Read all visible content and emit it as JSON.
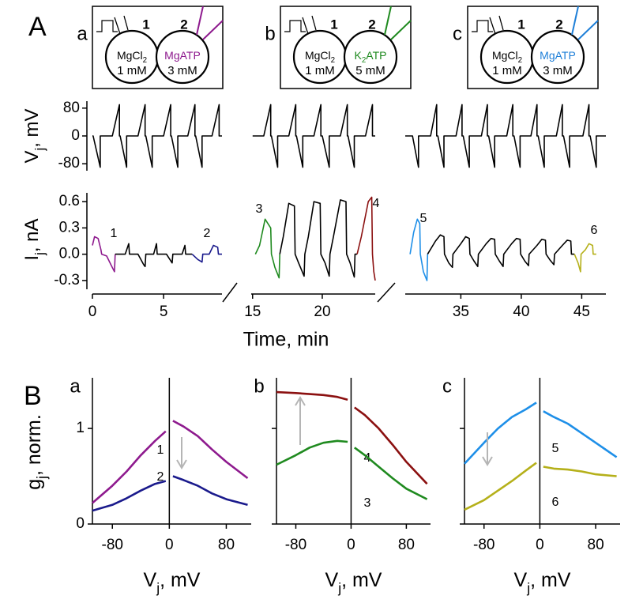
{
  "panel_labels": [
    "A",
    "B"
  ],
  "insets": [
    {
      "letter": "a",
      "cell1": "1",
      "cell2": "2",
      "left_solution": {
        "main": "MgCl",
        "sub": "2"
      },
      "left_conc": "1 mM",
      "right_solution": {
        "main": "MgATP"
      },
      "right_conc": "3 mM",
      "color": "#8e1a8e"
    },
    {
      "letter": "b",
      "cell1": "1",
      "cell2": "2",
      "left_solution": {
        "main": "MgCl",
        "sub": "2"
      },
      "left_conc": "1 mM",
      "right_solution": {
        "main": "K",
        "sub": "2",
        "rest": "ATP"
      },
      "right_conc": "5 mM",
      "color": "#1f8a1f"
    },
    {
      "letter": "c",
      "cell1": "1",
      "cell2": "2",
      "left_solution": {
        "main": "MgCl",
        "sub": "2"
      },
      "left_conc": "1 mM",
      "right_solution": {
        "main": "MgATP"
      },
      "right_conc": "3 mM",
      "color": "#1e7fd8"
    }
  ],
  "chart_data": [
    {
      "type": "line",
      "xlabel": "Time, min",
      "vj_label": {
        "main": "V",
        "sub": "j",
        "rest": ", mV"
      },
      "vj_ylim": [
        -100,
        100
      ],
      "vj_yticks": [
        80,
        0,
        -80
      ],
      "ij_label": {
        "main": "I",
        "sub": "j",
        "rest": ", nA"
      },
      "ij_ylim": [
        -0.4,
        0.7
      ],
      "ij_yticks": [
        0.6,
        0.3,
        {
          "value": 0,
          "label": "0.0"
        },
        -0.3
      ],
      "segments": [
        {
          "xlim": [
            0,
            9.1
          ],
          "xticks": [
            0,
            5
          ],
          "vj": {
            "color": "#000000",
            "x": [
              0,
              0.05,
              0.55,
              0.55,
              1.4,
              1.9,
              1.9,
              1.95,
              2.4,
              2.4,
              3.2,
              3.7,
              3.7,
              3.75,
              4.2,
              4.2,
              5.0,
              5.5,
              5.5,
              5.55,
              6.0,
              6.0,
              6.7,
              7.2,
              7.2,
              7.25,
              7.7,
              7.7,
              8.4,
              8.9,
              8.9,
              9.1
            ],
            "values": [
              0,
              0,
              -90,
              0,
              0,
              90,
              0,
              0,
              -90,
              0,
              0,
              90,
              0,
              0,
              -90,
              0,
              0,
              90,
              0,
              0,
              -90,
              0,
              0,
              90,
              0,
              0,
              -90,
              0,
              0,
              90,
              0,
              0
            ]
          },
          "ij": [
            {
              "name": "1",
              "color": "#8e1a8e",
              "x": [
                0,
                0.15,
                0.4,
                0.6,
                0.65,
                1.0,
                1.3,
                1.55,
                1.6
              ],
              "values": [
                0.1,
                0.2,
                0.18,
                0.05,
                0,
                -0.02,
                -0.12,
                -0.2,
                0
              ]
            },
            {
              "color": "#000000",
              "x": [
                1.6,
                2.3,
                2.55,
                2.6,
                3.2,
                3.6,
                3.7,
                3.75,
                4.3,
                4.5,
                4.55,
                5.2,
                5.6,
                5.65,
                6.3,
                6.5,
                6.55,
                7.0
              ],
              "values": [
                0,
                0,
                0.12,
                0,
                0,
                -0.12,
                -0.14,
                0,
                0,
                0.12,
                0,
                0,
                -0.1,
                0,
                0,
                0.1,
                0,
                0
              ]
            },
            {
              "name": "2",
              "color": "#1a1a8c",
              "x": [
                7.0,
                7.4,
                7.7,
                7.75,
                8.2,
                8.5,
                8.8,
                8.85,
                9.1
              ],
              "values": [
                0,
                -0.06,
                -0.09,
                0,
                0,
                0.1,
                0.08,
                0,
                0
              ]
            }
          ]
        },
        {
          "xlim": [
            14.9,
            23.8
          ],
          "xticks": [
            15,
            20
          ],
          "vj": {
            "color": "#000000",
            "x": [
              15,
              15.8,
              16.3,
              16.3,
              16.35,
              16.8,
              16.8,
              17.6,
              18.1,
              18.1,
              18.15,
              18.6,
              18.6,
              19.4,
              19.9,
              19.9,
              20.0,
              20.5,
              20.5,
              21.3,
              21.8,
              21.8,
              21.85,
              22.3,
              22.3,
              23.1,
              23.6,
              23.6,
              23.8
            ],
            "values": [
              0,
              0,
              90,
              0,
              0,
              -90,
              0,
              0,
              90,
              0,
              0,
              -90,
              0,
              0,
              90,
              0,
              0,
              -90,
              0,
              0,
              90,
              0,
              0,
              -90,
              0,
              0,
              90,
              0,
              0
            ]
          },
          "ij": [
            {
              "name": "3",
              "color": "#1f8a1f",
              "x": [
                15.2,
                15.5,
                15.9,
                16.3,
                16.35,
                16.6,
                16.9,
                16.95
              ],
              "values": [
                0,
                0.1,
                0.4,
                0.3,
                0,
                -0.15,
                -0.27,
                0
              ]
            },
            {
              "color": "#000000",
              "x": [
                16.95,
                17.2,
                17.6,
                18.0,
                18.05,
                18.3,
                18.7,
                18.75,
                19.0,
                19.4,
                19.85,
                19.9,
                20.2,
                20.5,
                20.55,
                20.8,
                21.3,
                21.7,
                21.75,
                22.0,
                22.3,
                22.35,
                22.5
              ],
              "values": [
                0,
                0.2,
                0.58,
                0.55,
                0,
                -0.1,
                -0.25,
                0,
                0.2,
                0.6,
                0.58,
                0,
                -0.1,
                -0.25,
                0,
                0.2,
                0.62,
                0.6,
                0,
                -0.1,
                -0.26,
                0,
                0
              ]
            },
            {
              "name": "4",
              "color": "#8b1010",
              "x": [
                22.5,
                22.8,
                23.3,
                23.55,
                23.6,
                23.7,
                23.8
              ],
              "values": [
                0,
                0.2,
                0.6,
                0.65,
                0,
                -0.2,
                -0.3
              ]
            }
          ]
        },
        {
          "xlim": [
            30.4,
            47.0
          ],
          "xticks": [
            35,
            40,
            45
          ],
          "vj": {
            "color": "#000000",
            "x": [
              30.4,
              31.0,
              31.5,
              31.5,
              32.5,
              33.0,
              33.0,
              33.1,
              33.6,
              33.6,
              34.6,
              35.1,
              35.1,
              35.2,
              35.7,
              35.7,
              36.7,
              37.2,
              37.2,
              37.3,
              37.8,
              37.8,
              38.8,
              39.3,
              39.3,
              39.4,
              39.9,
              39.9,
              40.8,
              41.3,
              41.3,
              41.4,
              41.9,
              41.9,
              42.9,
              43.4,
              43.4,
              43.5,
              44.0,
              44.0,
              45.1,
              45.6,
              45.6,
              45.7,
              46.2,
              46.2,
              47.0
            ],
            "values": [
              0,
              0,
              -90,
              0,
              0,
              90,
              0,
              0,
              -90,
              0,
              0,
              90,
              0,
              0,
              -90,
              0,
              0,
              90,
              0,
              0,
              -90,
              0,
              0,
              90,
              0,
              0,
              -90,
              0,
              0,
              90,
              0,
              0,
              -90,
              0,
              0,
              90,
              0,
              0,
              -90,
              0,
              0,
              90,
              0,
              0,
              -90,
              0,
              0
            ]
          },
          "ij": [
            {
              "name": "5",
              "color": "#1e8fe8",
              "x": [
                30.8,
                31.1,
                31.4,
                31.6,
                31.65,
                31.9,
                32.2,
                32.25
              ],
              "values": [
                0,
                0.25,
                0.4,
                0.35,
                0,
                -0.2,
                -0.3,
                0
              ]
            },
            {
              "color": "#000000",
              "x": [
                32.25,
                32.9,
                33.3,
                33.6,
                33.65,
                34.0,
                34.3,
                34.35,
                35.0,
                35.4,
                35.7,
                35.75,
                36.1,
                36.4,
                36.45,
                37.1,
                37.5,
                37.8,
                37.85,
                38.2,
                38.5,
                38.55,
                39.2,
                39.6,
                39.9,
                39.95,
                40.3,
                40.6,
                40.65,
                41.3,
                41.7,
                42.0,
                42.05,
                42.4,
                42.7,
                42.75,
                43.4,
                43.8,
                44.1,
                44.15,
                44.4
              ],
              "values": [
                0,
                0.15,
                0.22,
                0.2,
                0,
                -0.1,
                -0.15,
                0,
                0.12,
                0.2,
                0.18,
                0,
                -0.08,
                -0.14,
                0,
                0.12,
                0.18,
                0.17,
                0,
                -0.08,
                -0.14,
                0,
                0.12,
                0.18,
                0.17,
                0,
                -0.08,
                -0.13,
                0,
                0.1,
                0.17,
                0.16,
                0,
                -0.07,
                -0.12,
                0,
                0.1,
                0.16,
                0.15,
                0,
                0
              ]
            },
            {
              "name": "6",
              "color": "#b5b01a",
              "x": [
                44.4,
                44.7,
                44.9,
                44.95,
                45.3,
                45.6,
                45.9,
                45.95,
                46.2
              ],
              "values": [
                0,
                -0.1,
                -0.2,
                0,
                0.05,
                0.12,
                0.1,
                0,
                0
              ]
            }
          ]
        }
      ]
    },
    {
      "type": "line",
      "letter": "a",
      "xlabel": {
        "main": "V",
        "sub": "j",
        "rest": ", mV"
      },
      "ylabel": {
        "main": "g",
        "sub": "j",
        "rest": ", norm."
      },
      "xlim": [
        -108,
        115
      ],
      "xticks": [
        -80,
        0,
        80
      ],
      "ylim": [
        0,
        1.53
      ],
      "yticks": [
        0,
        1
      ],
      "show_ytick_labels": true,
      "x": [
        -108,
        -80,
        -60,
        -40,
        -20,
        -5,
        0,
        5,
        20,
        40,
        60,
        80,
        110
      ],
      "series": [
        {
          "name": "1",
          "color": "#8e1a8e",
          "values": [
            0.22,
            0.4,
            0.55,
            0.72,
            0.87,
            0.97,
            null,
            1.08,
            1.02,
            0.92,
            0.78,
            0.65,
            0.48
          ]
        },
        {
          "name": "2",
          "color": "#1a1a8c",
          "values": [
            0.14,
            0.2,
            0.27,
            0.35,
            0.42,
            0.45,
            null,
            0.5,
            0.46,
            0.4,
            0.32,
            0.26,
            0.2
          ]
        }
      ]
    },
    {
      "type": "line",
      "letter": "b",
      "xlabel": {
        "main": "V",
        "sub": "j",
        "rest": ", mV"
      },
      "xlim": [
        -108,
        115
      ],
      "xticks": [
        -80,
        0,
        80
      ],
      "ylim": [
        0,
        1.53
      ],
      "yticks": [
        0,
        1
      ],
      "show_ytick_labels": false,
      "x": [
        -108,
        -80,
        -60,
        -40,
        -20,
        -5,
        0,
        5,
        20,
        40,
        60,
        80,
        110
      ],
      "series": [
        {
          "name": "4",
          "color": "#8b1010",
          "values": [
            1.38,
            1.37,
            1.36,
            1.35,
            1.33,
            1.3,
            null,
            1.22,
            1.14,
            1.0,
            0.83,
            0.65,
            0.42
          ]
        },
        {
          "name": "3",
          "color": "#1f8a1f",
          "values": [
            0.62,
            0.72,
            0.8,
            0.85,
            0.87,
            0.86,
            null,
            0.8,
            0.72,
            0.6,
            0.48,
            0.37,
            0.26
          ]
        }
      ]
    },
    {
      "type": "line",
      "letter": "c",
      "xlabel": {
        "main": "V",
        "sub": "j",
        "rest": ", mV"
      },
      "xlim": [
        -108,
        115
      ],
      "xticks": [
        -80,
        0,
        80
      ],
      "ylim": [
        0,
        1.53
      ],
      "yticks": [
        0,
        1
      ],
      "show_ytick_labels": false,
      "x": [
        -108,
        -80,
        -60,
        -40,
        -20,
        -5,
        0,
        5,
        20,
        40,
        60,
        80,
        110
      ],
      "series": [
        {
          "name": "5",
          "color": "#1e8fe8",
          "values": [
            0.63,
            0.85,
            1.0,
            1.12,
            1.2,
            1.27,
            null,
            1.18,
            1.12,
            1.05,
            0.95,
            0.85,
            0.7
          ]
        },
        {
          "name": "6",
          "color": "#b5b01a",
          "values": [
            0.15,
            0.25,
            0.35,
            0.45,
            0.56,
            0.64,
            null,
            0.6,
            0.58,
            0.57,
            0.55,
            0.52,
            0.5
          ]
        }
      ]
    }
  ]
}
